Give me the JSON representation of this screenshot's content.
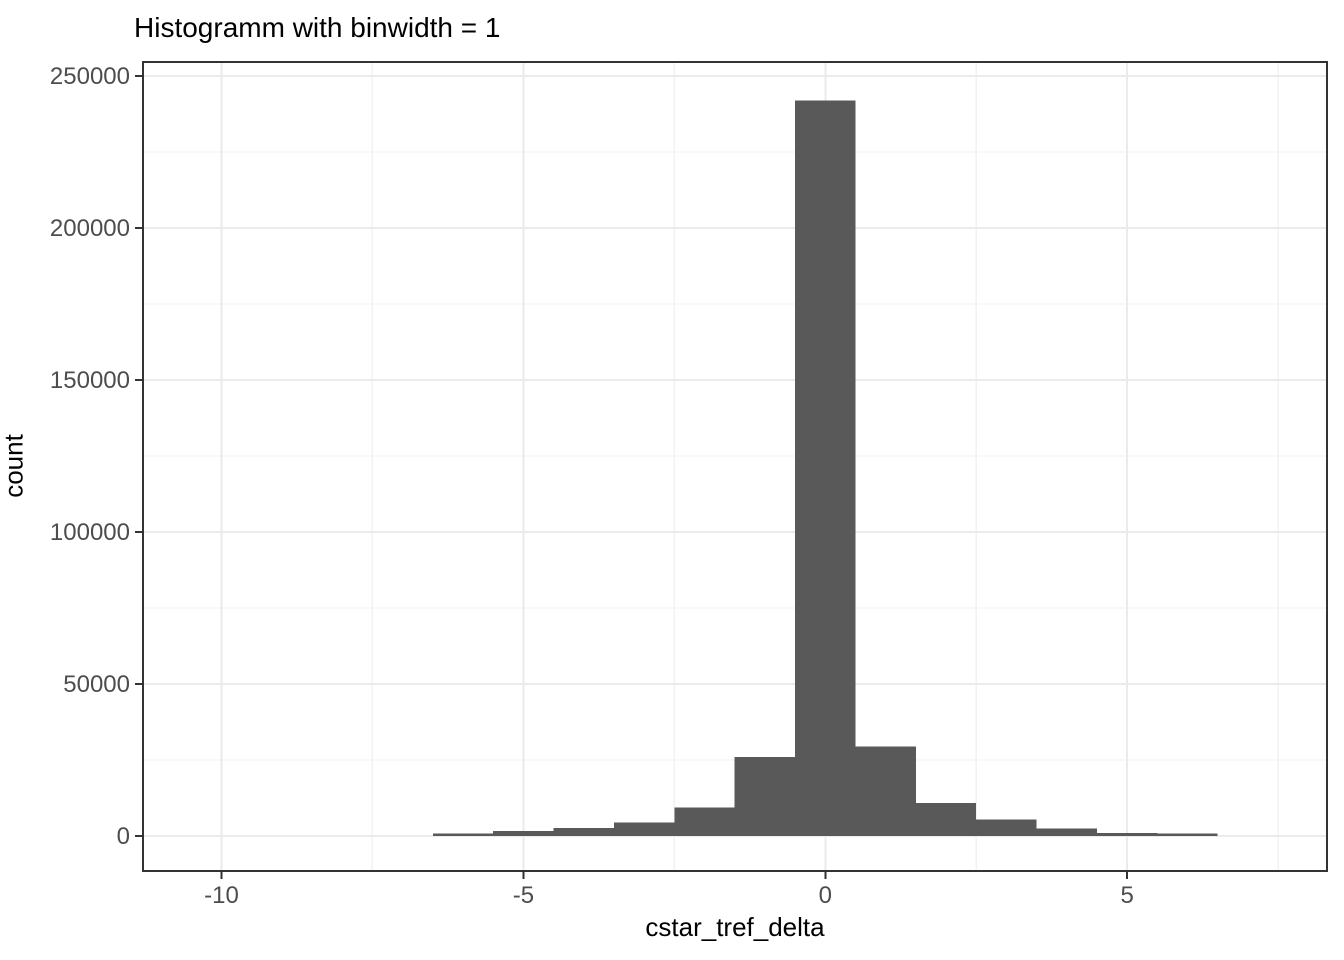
{
  "chart_data": {
    "type": "bar",
    "subtype": "histogram",
    "title": "Histogramm with binwidth = 1",
    "xlabel": "cstar_tref_delta",
    "ylabel": "count",
    "bin_width": 1,
    "bin_centers": [
      -6,
      -5,
      -4,
      -3,
      -2,
      -1,
      0,
      1,
      2,
      3,
      4,
      5,
      6
    ],
    "counts": [
      800,
      1600,
      2600,
      4500,
      9400,
      26000,
      242000,
      29400,
      10900,
      5500,
      2500,
      1000,
      800
    ],
    "xlim": [
      -11.3,
      8.31
    ],
    "ylim": [
      -11500,
      254600
    ],
    "x_major_ticks": [
      -10,
      -5,
      0,
      5
    ],
    "x_minor_ticks": [
      -7.5,
      -2.5,
      2.5,
      7.5
    ],
    "y_major_ticks": [
      0,
      50000,
      100000,
      150000,
      200000,
      250000
    ],
    "y_minor_ticks": [
      25000,
      75000,
      125000,
      175000,
      225000
    ],
    "grid": "major+minor",
    "legend_position": "none",
    "colors": {
      "bar_fill": "#595959",
      "panel_border": "#333333",
      "panel_background": "#ffffff",
      "grid_major": "#ebebeb",
      "grid_minor": "#f2f2f2",
      "tick_mark": "#333333",
      "tick_label": "#4d4d4d",
      "title": "#000000",
      "axis_title": "#000000",
      "figure_background": "#ffffff"
    }
  }
}
